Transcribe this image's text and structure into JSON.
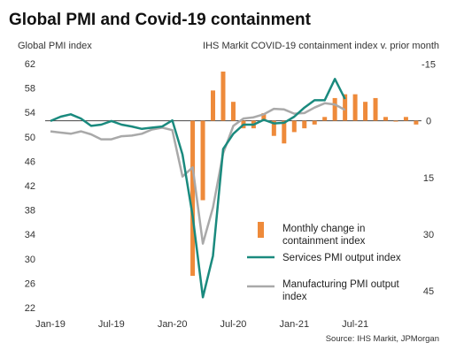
{
  "chart_data": {
    "type": "bar+line",
    "title": "Global PMI and Covid-19 containment",
    "left_axis_title": "Global PMI index",
    "right_axis_title": "IHS Markit COVID-19 containment index v. prior month",
    "left_ticks": [
      "62",
      "58",
      "54",
      "50",
      "46",
      "42",
      "38",
      "34",
      "30",
      "26",
      "22"
    ],
    "left_ylim": [
      22,
      62
    ],
    "right_ticks": [
      "-15",
      "0",
      "15",
      "30",
      "45"
    ],
    "right_ylim_reversed": [
      -15,
      0,
      15,
      30,
      45
    ],
    "x_ticks": [
      "Jan-19",
      "Jul-19",
      "Jan-20",
      "Jul-20",
      "Jan-21",
      "Jul-21"
    ],
    "months": [
      "Jan-19",
      "Feb-19",
      "Mar-19",
      "Apr-19",
      "May-19",
      "Jun-19",
      "Jul-19",
      "Aug-19",
      "Sep-19",
      "Oct-19",
      "Nov-19",
      "Dec-19",
      "Jan-20",
      "Feb-20",
      "Mar-20",
      "Apr-20",
      "May-20",
      "Jun-20",
      "Jul-20",
      "Aug-20",
      "Sep-20",
      "Oct-20",
      "Nov-20",
      "Dec-20",
      "Jan-21",
      "Feb-21",
      "Mar-21",
      "Apr-21",
      "May-21",
      "Jun-21",
      "Jul-21",
      "Aug-21",
      "Sep-21",
      "Oct-21",
      "Nov-21",
      "Dec-21",
      "Jan-22"
    ],
    "series": [
      {
        "name": "Monthly change in containment index",
        "type": "bar",
        "axis": "right",
        "color": "#ee8a3a",
        "values": [
          null,
          null,
          null,
          null,
          null,
          null,
          null,
          null,
          null,
          null,
          null,
          null,
          null,
          null,
          41,
          21,
          -8,
          -13,
          -5,
          2,
          2,
          -2,
          4,
          6,
          3,
          2,
          1,
          -1,
          -6,
          -7,
          -7,
          -5,
          -6,
          -1,
          0,
          -1,
          1
        ]
      },
      {
        "name": "Services PMI output index",
        "type": "line",
        "axis": "left",
        "color": "#1a8a7e",
        "values": [
          52.6,
          53.3,
          53.7,
          53.0,
          51.8,
          52.0,
          52.6,
          52.0,
          51.7,
          51.3,
          51.5,
          51.7,
          52.7,
          47.1,
          37.0,
          23.7,
          30.5,
          48.0,
          50.5,
          52.0,
          52.0,
          52.8,
          52.2,
          52.3,
          53.3,
          54.8,
          56.0,
          56.0,
          59.5,
          56.2,
          null,
          null,
          null,
          null,
          null,
          null,
          null
        ]
      },
      {
        "name": "Manufacturing PMI output index",
        "type": "line",
        "axis": "left",
        "color": "#a9a9a9",
        "values": [
          50.9,
          50.7,
          50.5,
          50.9,
          50.4,
          49.6,
          49.6,
          50.1,
          50.2,
          50.5,
          51.2,
          51.5,
          51.1,
          43.5,
          45.0,
          32.5,
          38.4,
          47.3,
          51.8,
          53.0,
          53.2,
          53.7,
          54.6,
          54.5,
          53.8,
          53.9,
          54.8,
          55.5,
          55.3,
          54.4,
          null,
          null,
          null,
          null,
          null,
          null,
          null
        ]
      }
    ],
    "legend_position": "right-bottom",
    "grid": false
  },
  "legend": {
    "bar_line1": "Monthly change in",
    "bar_line2": "containment index",
    "services": "Services PMI output index",
    "mfg_line1": "Manufacturing PMI output",
    "mfg_line2": "index"
  },
  "source": "Source: IHS Markit, JPMorgan",
  "colors": {
    "bar": "#ee8a3a",
    "services": "#1a8a7e",
    "manufacturing": "#a9a9a9",
    "axis": "#444444"
  }
}
